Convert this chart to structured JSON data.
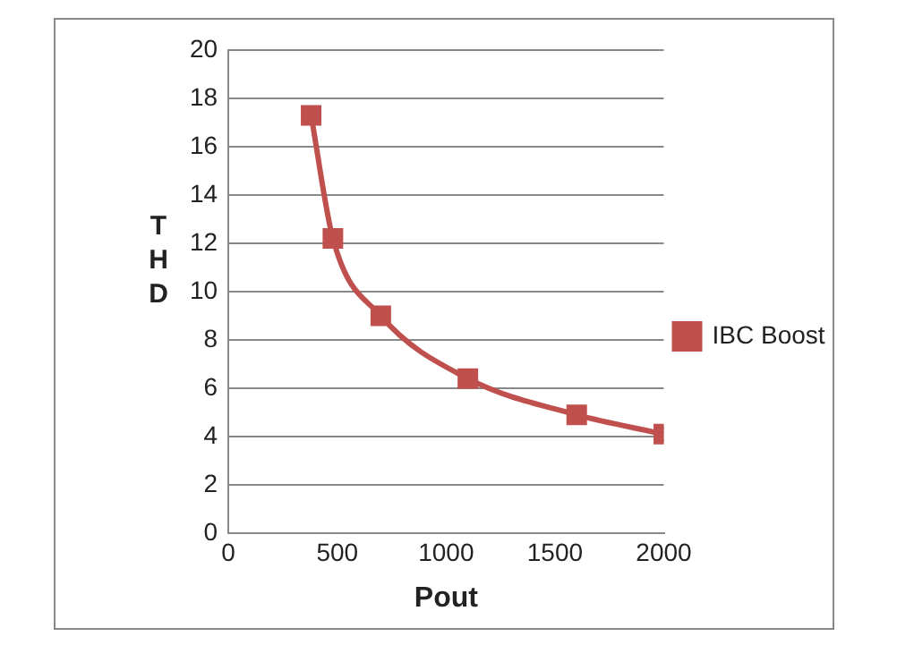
{
  "chart_data": {
    "type": "line",
    "xlabel": "Pout",
    "ylabel": "THD",
    "x": [
      380,
      480,
      700,
      1100,
      1600,
      2000
    ],
    "series": [
      {
        "name": "IBC Boost",
        "color": "#c0504d",
        "values": [
          17.3,
          12.2,
          9.0,
          6.4,
          4.9,
          4.1
        ]
      }
    ],
    "xlim": [
      0,
      2000
    ],
    "xticks": [
      0,
      500,
      1000,
      1500,
      2000
    ],
    "ylim": [
      0,
      20
    ],
    "yticks": [
      0,
      2,
      4,
      6,
      8,
      10,
      12,
      14,
      16,
      18,
      20
    ],
    "grid": "y",
    "legend": "right",
    "marker": "square",
    "line_style": "solid"
  }
}
